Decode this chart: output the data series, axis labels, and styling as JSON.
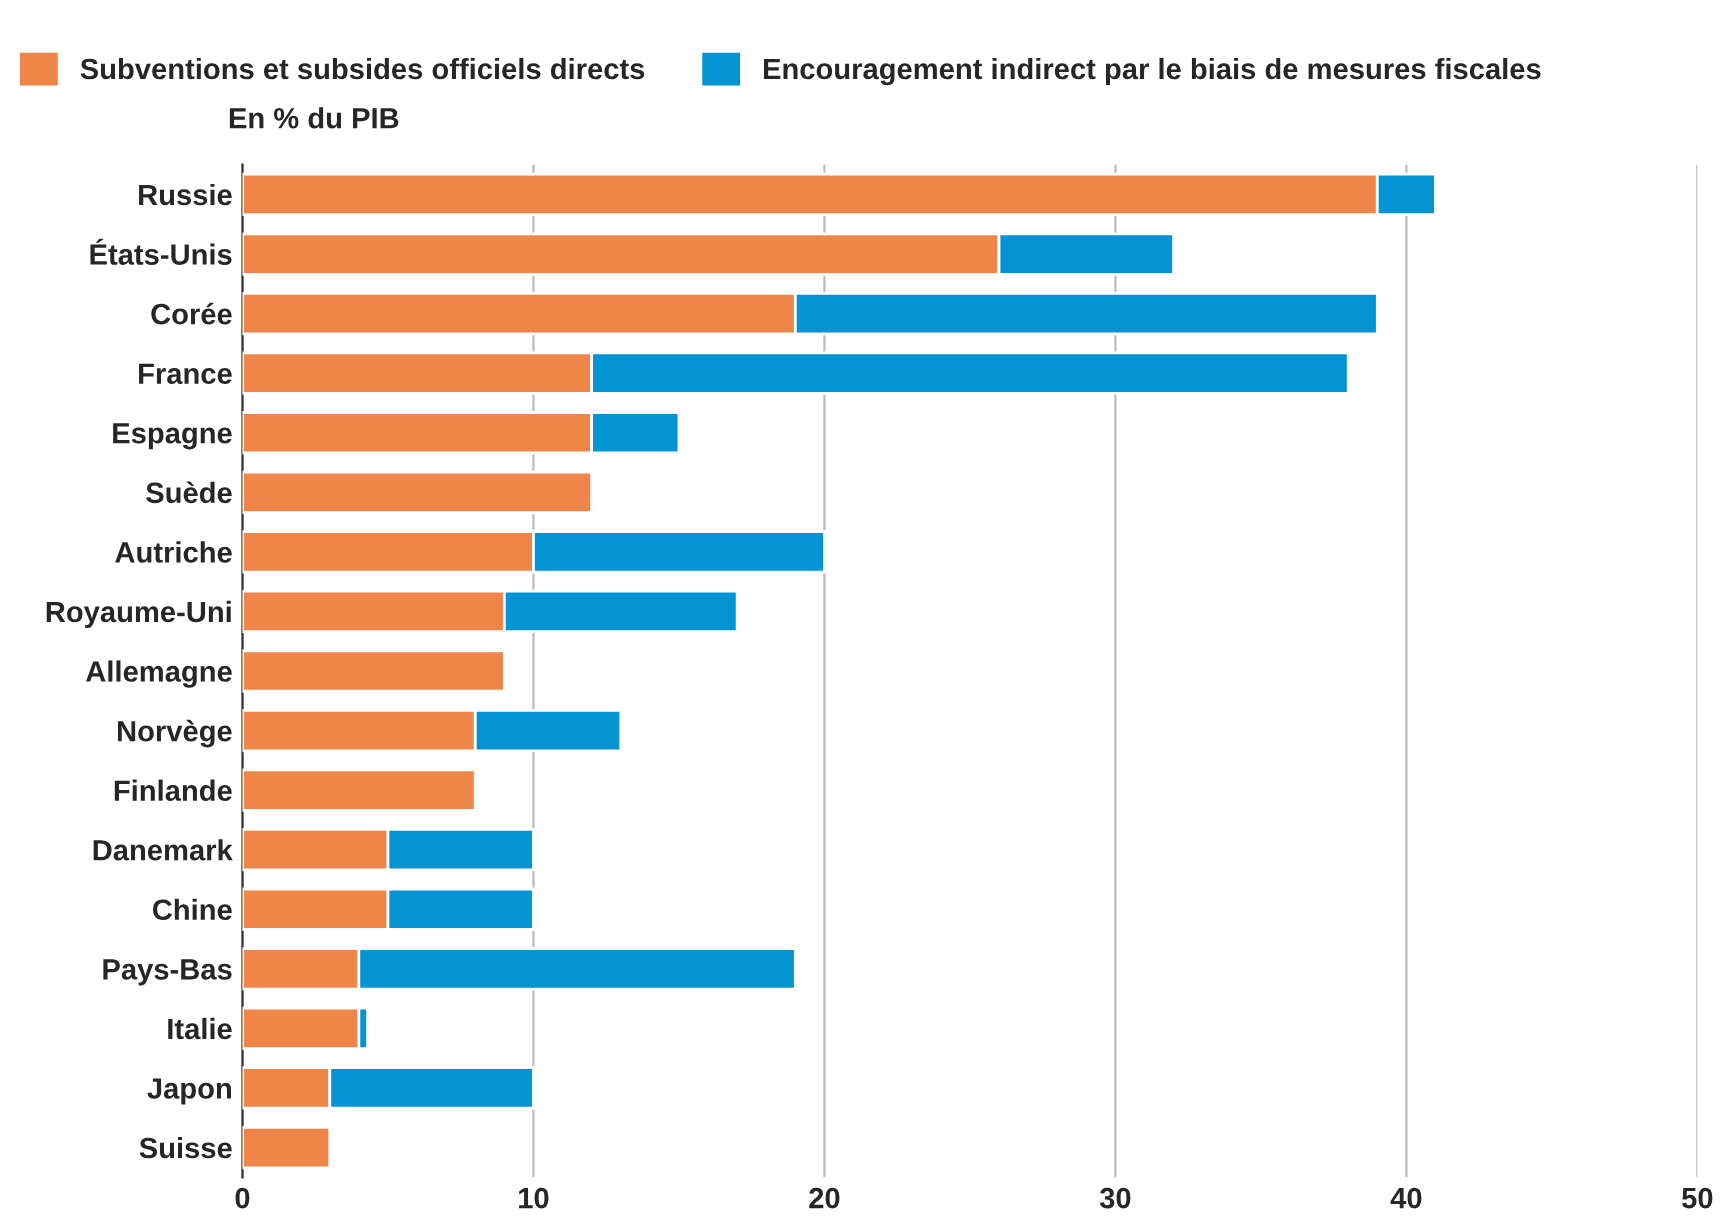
{
  "chart_data": {
    "type": "bar",
    "orientation": "horizontal",
    "stacked": true,
    "ylabel": "En % du PIB",
    "categories": [
      "Russie",
      "États-Unis",
      "Corée",
      "France",
      "Espagne",
      "Suède",
      "Autriche",
      "Royaume-Uni",
      "Allemagne",
      "Norvège",
      "Finlande",
      "Danemark",
      "Chine",
      "Pays-Bas",
      "Italie",
      "Japon",
      "Suisse"
    ],
    "series": [
      {
        "name": "Subventions et subsides officiels directs",
        "color": "#f0854a",
        "values": [
          39,
          26,
          19,
          12,
          12,
          12,
          10,
          9,
          9,
          8,
          8,
          5,
          5,
          4,
          4,
          3,
          3
        ]
      },
      {
        "name": "Encouragement indirect par le biais de mesures fiscales",
        "color": "#0494d4",
        "values": [
          2,
          6,
          20,
          26,
          3,
          null,
          10,
          8,
          null,
          5,
          null,
          5,
          5,
          15,
          0.3,
          7,
          null
        ]
      }
    ],
    "xlim": [
      0,
      50
    ],
    "xticks": [
      0,
      10,
      20,
      30,
      40,
      50
    ],
    "grid": "x",
    "legend": "top"
  }
}
